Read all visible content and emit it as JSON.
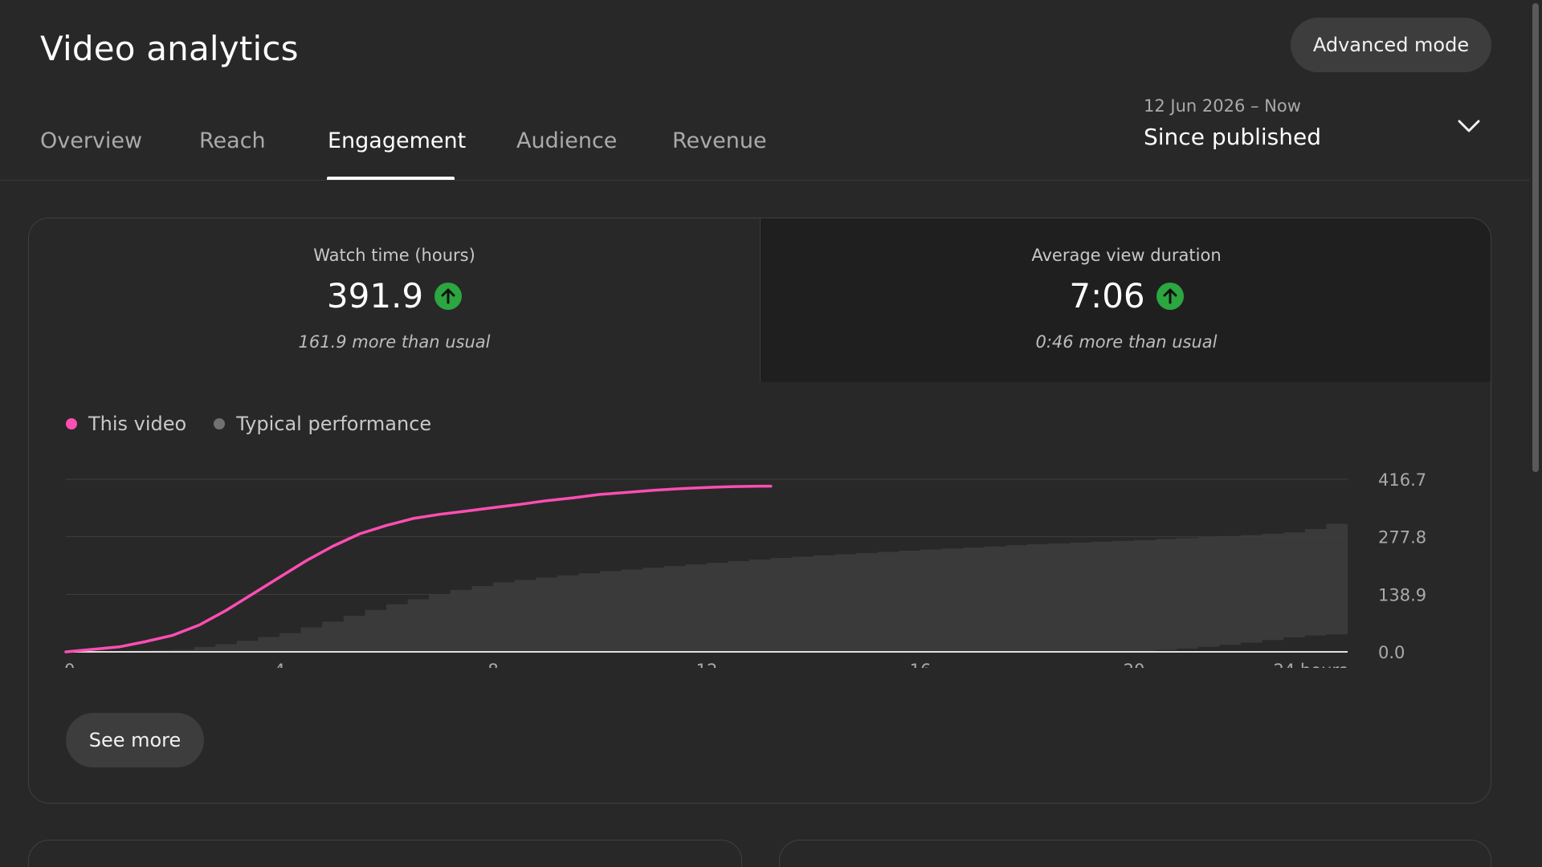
{
  "header": {
    "title": "Video analytics",
    "advanced_mode_label": "Advanced mode"
  },
  "tabs": [
    {
      "label": "Overview"
    },
    {
      "label": "Reach"
    },
    {
      "label": "Engagement",
      "active": true
    },
    {
      "label": "Audience"
    },
    {
      "label": "Revenue"
    }
  ],
  "date_range": {
    "range": "12 Jun 2026 – Now",
    "label": "Since published",
    "icon": "chevron-down-icon"
  },
  "metrics": [
    {
      "label": "Watch time (hours)",
      "value": "391.9",
      "trend_icon": "arrow-up-icon",
      "note": "161.9 more than usual",
      "selected": false
    },
    {
      "label": "Average view duration",
      "value": "7:06",
      "trend_icon": "arrow-up-icon",
      "note": "0:46 more than usual",
      "selected": true
    }
  ],
  "legend": [
    {
      "label": "This video",
      "color": "#ff4eb3"
    },
    {
      "label": "Typical performance",
      "color": "#717171"
    }
  ],
  "see_more_label": "See more",
  "chart_data": {
    "type": "line",
    "x_ticks": [
      "0",
      "4",
      "8",
      "12",
      "16",
      "20",
      "24 hours"
    ],
    "y_ticks": [
      "0.0",
      "138.9",
      "277.8",
      "416.7"
    ],
    "xlim": [
      0,
      24
    ],
    "ylim": [
      0,
      416.7
    ],
    "y_axis_position": "right",
    "grid": true,
    "series": [
      {
        "name": "This video",
        "color": "#ff4eb3",
        "x": [
          0,
          0.5,
          1,
          1.5,
          2,
          2.5,
          3,
          3.5,
          4,
          4.5,
          5,
          5.5,
          6,
          6.5,
          7,
          7.5,
          8,
          8.5,
          9,
          9.5,
          10,
          10.5,
          11,
          11.5,
          12,
          12.5,
          13,
          13.2
        ],
        "y": [
          0,
          6,
          12,
          25,
          40,
          65,
          100,
          140,
          180,
          220,
          255,
          285,
          305,
          322,
          332,
          340,
          348,
          356,
          365,
          372,
          380,
          385,
          390,
          394,
          397,
          399,
          400,
          400
        ]
      },
      {
        "name": "Typical performance",
        "color": "#3a3a3a",
        "type": "area",
        "x": [
          0,
          2,
          3,
          4,
          5,
          6,
          7,
          8,
          9,
          10,
          11,
          12,
          13,
          14,
          15,
          16,
          17,
          18,
          19,
          20,
          21,
          22,
          23,
          24
        ],
        "upper": [
          0,
          5,
          22,
          45,
          80,
          115,
          145,
          168,
          182,
          195,
          205,
          215,
          225,
          233,
          240,
          247,
          253,
          260,
          265,
          270,
          276,
          282,
          290,
          322
        ],
        "lower": [
          0,
          0,
          0,
          0,
          0,
          0,
          0,
          0,
          0,
          0,
          0,
          0,
          0,
          0,
          0,
          0,
          0,
          0,
          0,
          0,
          10,
          22,
          38,
          45
        ]
      }
    ]
  }
}
